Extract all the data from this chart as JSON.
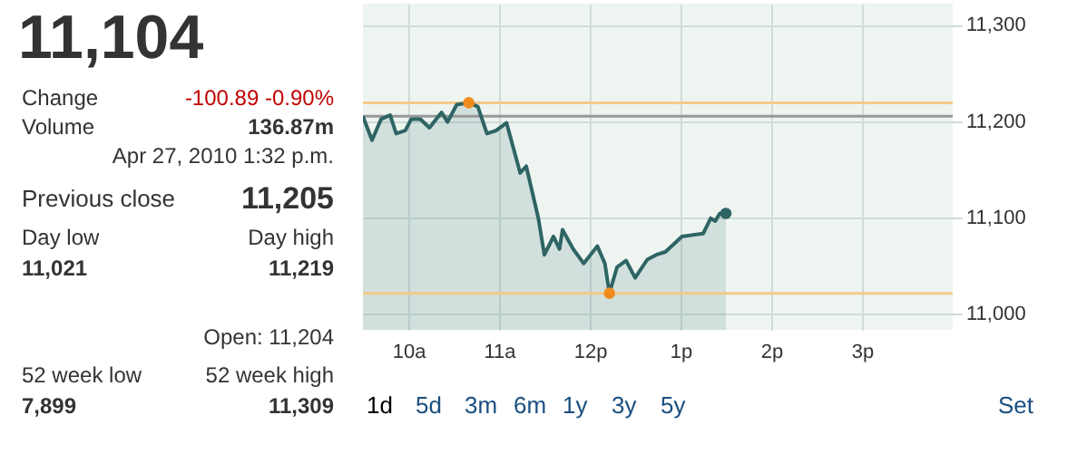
{
  "chart_data": [
    {
      "type": "other",
      "annotations": [
        "11,104",
        "Change",
        "-100.89 -0.90%",
        "Volume",
        "136.87m",
        "Apr 27, 2010 1:32 p.m.",
        "Previous close",
        "11,205",
        "Day low",
        "Day high",
        "11,021",
        "11,219",
        "Open: 11,204",
        "52 week low",
        "52 week high",
        "7,899",
        "11,309"
      ]
    },
    {
      "type": "area",
      "x": [
        "2010-04-27T09:30",
        "2010-04-27T09:36",
        "2010-04-27T09:42",
        "2010-04-27T09:48",
        "2010-04-27T09:52",
        "2010-04-27T09:58",
        "2010-04-27T10:02",
        "2010-04-27T10:08",
        "2010-04-27T10:14",
        "2010-04-27T10:22",
        "2010-04-27T10:26",
        "2010-04-27T10:32",
        "2010-04-27T10:40",
        "2010-04-27T10:46",
        "2010-04-27T10:52",
        "2010-04-27T10:58",
        "2010-04-27T11:05",
        "2010-04-27T11:14",
        "2010-04-27T11:18",
        "2010-04-27T11:26",
        "2010-04-27T11:30",
        "2010-04-27T11:36",
        "2010-04-27T11:40",
        "2010-04-27T11:42",
        "2010-04-27T11:49",
        "2010-04-27T11:56",
        "2010-04-27T12:05",
        "2010-04-27T12:10",
        "2010-04-27T12:13",
        "2010-04-27T12:18",
        "2010-04-27T12:24",
        "2010-04-27T12:30",
        "2010-04-27T12:38",
        "2010-04-27T12:44",
        "2010-04-27T12:50",
        "2010-04-27T13:01",
        "2010-04-27T13:15",
        "2010-04-27T13:20",
        "2010-04-27T13:23",
        "2010-04-27T13:26",
        "2010-04-27T13:30"
      ],
      "series": [
        {
          "type": "area",
          "color": "#2e6464",
          "values": [
            11205,
            11180,
            11202,
            11206,
            11187,
            11190,
            11202,
            11202,
            11193,
            11209,
            11199,
            11217,
            11219,
            11215,
            11187,
            11190,
            11198,
            11146,
            11153,
            11099,
            11061,
            11080,
            11067,
            11087,
            11067,
            11052,
            11070,
            11052,
            11021,
            11048,
            11055,
            11037,
            11056,
            11061,
            11064,
            11080,
            11083,
            11099,
            11096,
            11104,
            11104
          ]
        },
        {
          "type": "scatter",
          "color": "#f08c1e",
          "x": [
            "2010-04-27T10:40",
            "2010-04-27T12:13"
          ],
          "values": [
            11219,
            11021
          ]
        },
        {
          "type": "scatter",
          "color": "#2e6464",
          "x": [
            "2010-04-27T13:30"
          ],
          "values": [
            11104
          ]
        }
      ],
      "xlim": [
        "2010-04-27T09:30",
        "2010-04-27T16:00"
      ],
      "xticks": [
        {
          "value": "2010-04-27T10:00",
          "label": "10a"
        },
        {
          "value": "2010-04-27T11:00",
          "label": "11a"
        },
        {
          "value": "2010-04-27T12:00",
          "label": "12p"
        },
        {
          "value": "2010-04-27T13:00",
          "label": "1p"
        },
        {
          "value": "2010-04-27T14:00",
          "label": "2p"
        },
        {
          "value": "2010-04-27T15:00",
          "label": "3p"
        }
      ],
      "ylim": [
        10983,
        11322
      ],
      "yticks": [
        {
          "value": 11000,
          "label": "11,000"
        },
        {
          "value": 11100,
          "label": "11,100"
        },
        {
          "value": 11200,
          "label": "11,200"
        },
        {
          "value": 11300,
          "label": "11,300"
        }
      ],
      "grid": true,
      "ref_lines": [
        {
          "axis": "y",
          "value": 11219,
          "color": "#f5c98a"
        },
        {
          "axis": "y",
          "value": 11205,
          "color": "#999999"
        },
        {
          "axis": "y",
          "value": 11021,
          "color": "#f5c98a"
        }
      ],
      "annotations": [
        "1d",
        "5d",
        "3m",
        "6m",
        "1y",
        "3y",
        "5y",
        "Set"
      ]
    }
  ]
}
